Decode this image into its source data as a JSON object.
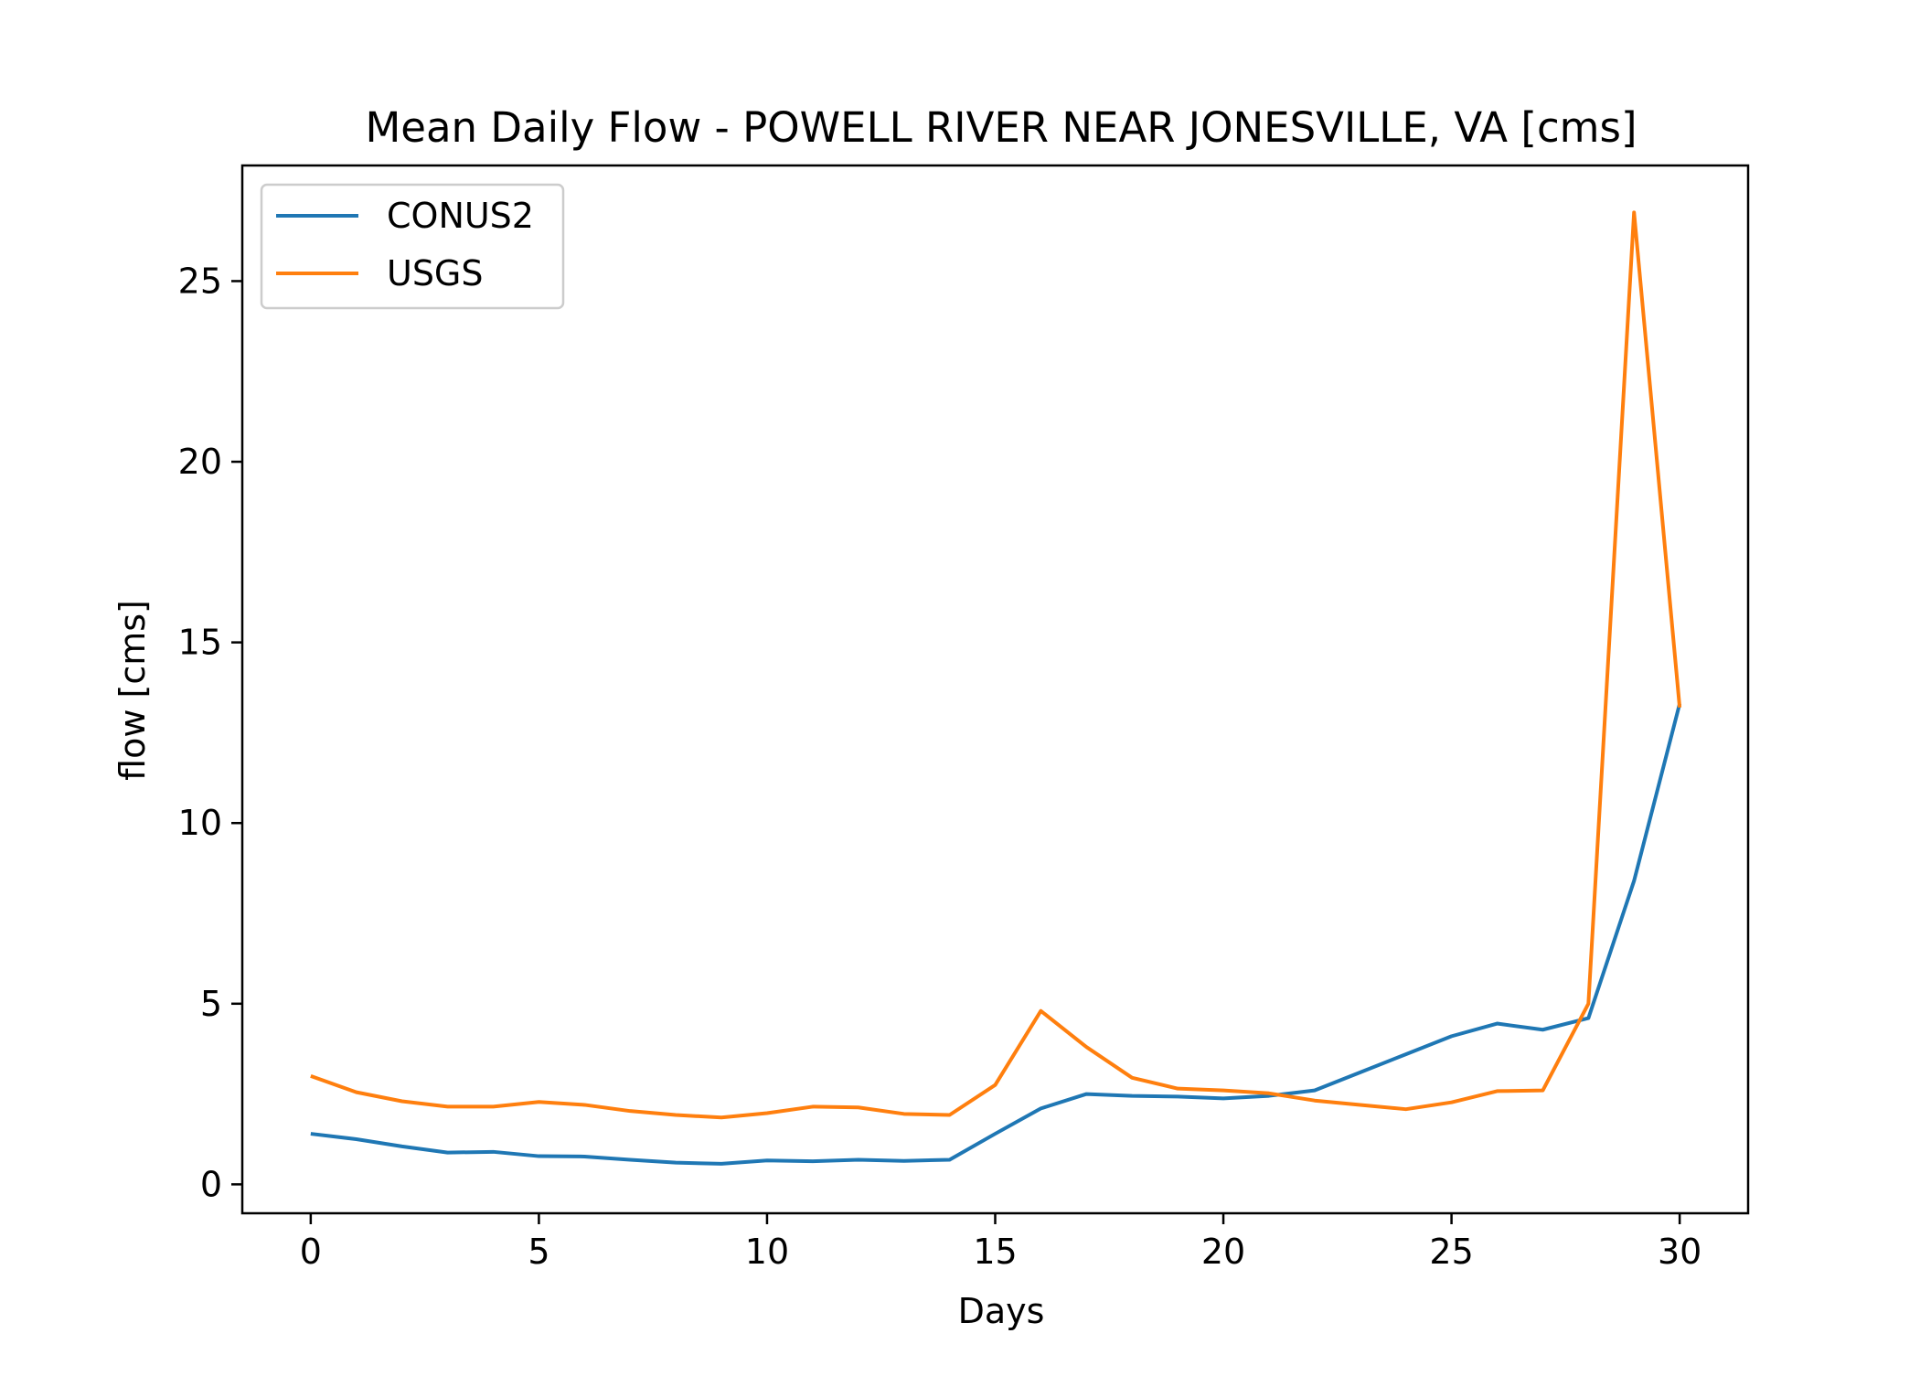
{
  "chart_data": {
    "type": "line",
    "title": "Mean Daily Flow - POWELL RIVER NEAR JONESVILLE, VA [cms]",
    "xlabel": "Days",
    "ylabel": "flow [cms]",
    "xlim": [
      -1.5,
      31.5
    ],
    "ylim": [
      -0.8,
      28.2
    ],
    "x_ticks": [
      0,
      5,
      10,
      15,
      20,
      25,
      30
    ],
    "y_ticks": [
      0,
      5,
      10,
      15,
      20,
      25
    ],
    "grid": false,
    "legend_position": "upper-left",
    "x": [
      0,
      1,
      2,
      3,
      4,
      5,
      6,
      7,
      8,
      9,
      10,
      11,
      12,
      13,
      14,
      15,
      16,
      17,
      18,
      19,
      20,
      21,
      22,
      23,
      24,
      25,
      26,
      27,
      28,
      29,
      30
    ],
    "series": [
      {
        "name": "CONUS2",
        "color": "#1f77b4",
        "values": [
          1.4,
          1.25,
          1.05,
          0.88,
          0.9,
          0.78,
          0.77,
          0.68,
          0.6,
          0.57,
          0.66,
          0.64,
          0.68,
          0.65,
          0.68,
          1.4,
          2.1,
          2.5,
          2.45,
          2.43,
          2.38,
          2.45,
          2.6,
          3.1,
          3.6,
          4.1,
          4.45,
          4.28,
          4.6,
          8.4,
          13.3
        ]
      },
      {
        "name": "USGS",
        "color": "#ff7f0e",
        "values": [
          3.0,
          2.55,
          2.3,
          2.15,
          2.15,
          2.28,
          2.2,
          2.03,
          1.92,
          1.85,
          1.97,
          2.15,
          2.13,
          1.95,
          1.92,
          2.75,
          4.8,
          3.8,
          2.95,
          2.65,
          2.6,
          2.52,
          2.32,
          2.2,
          2.08,
          2.27,
          2.58,
          2.6,
          5.0,
          26.9,
          13.2
        ]
      }
    ]
  }
}
